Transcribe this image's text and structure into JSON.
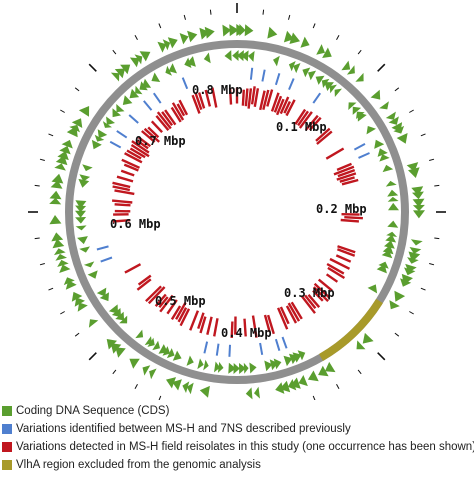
{
  "labels": [
    "0.1 Mbp",
    "0.2 Mbp",
    "0.3 Mbp",
    "0.4 Mbp",
    "0.5 Mbp",
    "0.6 Mbp",
    "0.7 Mbp",
    "0.8 Mbp"
  ],
  "legend": [
    {
      "label": "Coding DNA Sequence (CDS)",
      "color": "#5a9e2f"
    },
    {
      "label": "Variations identified between MS-H and 7NS described previously",
      "color": "#4f7fcf"
    },
    {
      "label": "Variations detected in MS-H field reisolates in this study (one occurrence has been shown)",
      "color": "#c0171f"
    },
    {
      "label": "VlhA region excluded from the genomic analysis",
      "color": "#a89a2a"
    }
  ],
  "colors": {
    "backbone": "#8f8f8f",
    "cds": "#5a9e2f",
    "previous_variation": "#4f7fcf",
    "field_variation": "#c0171f",
    "vlha_region": "#a89a2a",
    "tick": "#111111"
  }
}
